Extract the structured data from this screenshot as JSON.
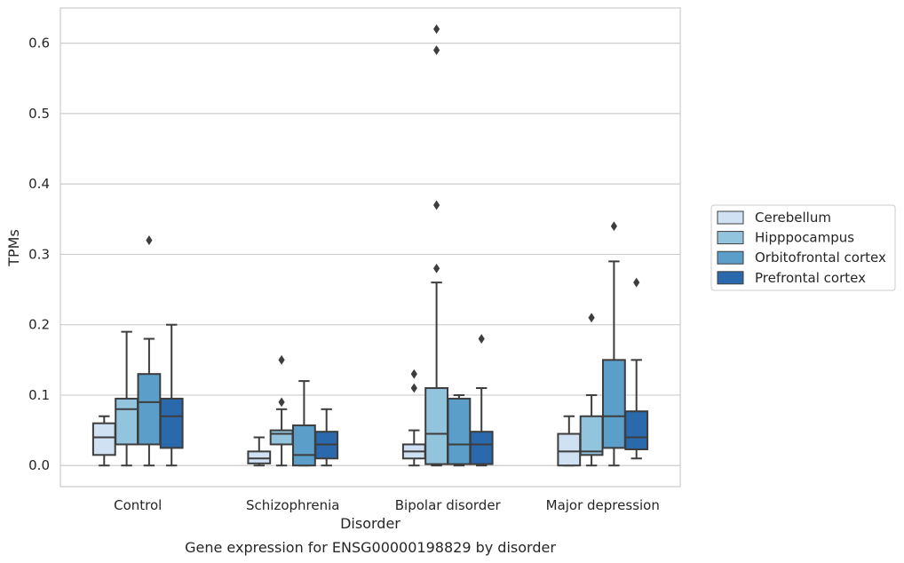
{
  "caption": "Gene expression for ENSG00000198829 by disorder",
  "chart_data": {
    "type": "box",
    "title": "",
    "xlabel": "Disorder",
    "ylabel": "TPMs",
    "ylim": [
      -0.03,
      0.65
    ],
    "yticks": [
      0.0,
      0.1,
      0.2,
      0.3,
      0.4,
      0.5,
      0.6
    ],
    "ytick_labels": [
      "0.0",
      "0.1",
      "0.2",
      "0.3",
      "0.4",
      "0.5",
      "0.6"
    ],
    "grid": "horizontal",
    "legend_position": "right",
    "categories": [
      "Control",
      "Schizophrenia",
      "Bipolar disorder",
      "Major depression"
    ],
    "series": [
      {
        "name": "Cerebellum",
        "color": "#cfe1f2",
        "boxes": [
          {
            "whislo": 0.0,
            "q1": 0.015,
            "med": 0.04,
            "q3": 0.06,
            "whishi": 0.07,
            "fliers": []
          },
          {
            "whislo": 0.0,
            "q1": 0.003,
            "med": 0.01,
            "q3": 0.02,
            "whishi": 0.04,
            "fliers": []
          },
          {
            "whislo": 0.0,
            "q1": 0.01,
            "med": 0.02,
            "q3": 0.03,
            "whishi": 0.05,
            "fliers": [
              0.11,
              0.13
            ]
          },
          {
            "whislo": 0.0,
            "q1": 0.0,
            "med": 0.02,
            "q3": 0.045,
            "whishi": 0.07,
            "fliers": []
          }
        ]
      },
      {
        "name": "Hipppocampus",
        "color": "#93c4de",
        "boxes": [
          {
            "whislo": 0.0,
            "q1": 0.03,
            "med": 0.08,
            "q3": 0.095,
            "whishi": 0.19,
            "fliers": []
          },
          {
            "whislo": 0.0,
            "q1": 0.03,
            "med": 0.045,
            "q3": 0.05,
            "whishi": 0.08,
            "fliers": [
              0.09,
              0.15
            ]
          },
          {
            "whislo": 0.0,
            "q1": 0.002,
            "med": 0.045,
            "q3": 0.11,
            "whishi": 0.26,
            "fliers": [
              0.28,
              0.37,
              0.59,
              0.62
            ]
          },
          {
            "whislo": 0.0,
            "q1": 0.015,
            "med": 0.02,
            "q3": 0.07,
            "whishi": 0.1,
            "fliers": [
              0.21
            ]
          }
        ]
      },
      {
        "name": "Orbitofrontal cortex",
        "color": "#5a9ec9",
        "boxes": [
          {
            "whislo": 0.0,
            "q1": 0.03,
            "med": 0.09,
            "q3": 0.13,
            "whishi": 0.18,
            "fliers": [
              0.32
            ]
          },
          {
            "whislo": 0.0,
            "q1": 0.0,
            "med": 0.015,
            "q3": 0.057,
            "whishi": 0.12,
            "fliers": []
          },
          {
            "whislo": 0.0,
            "q1": 0.002,
            "med": 0.03,
            "q3": 0.095,
            "whishi": 0.1,
            "fliers": []
          },
          {
            "whislo": 0.0,
            "q1": 0.025,
            "med": 0.07,
            "q3": 0.15,
            "whishi": 0.29,
            "fliers": [
              0.34
            ]
          }
        ]
      },
      {
        "name": "Prefrontal cortex",
        "color": "#2a69ac",
        "boxes": [
          {
            "whislo": 0.0,
            "q1": 0.025,
            "med": 0.07,
            "q3": 0.095,
            "whishi": 0.2,
            "fliers": []
          },
          {
            "whislo": 0.0,
            "q1": 0.01,
            "med": 0.03,
            "q3": 0.048,
            "whishi": 0.08,
            "fliers": []
          },
          {
            "whislo": 0.0,
            "q1": 0.002,
            "med": 0.03,
            "q3": 0.048,
            "whishi": 0.11,
            "fliers": [
              0.18
            ]
          },
          {
            "whislo": 0.01,
            "q1": 0.023,
            "med": 0.04,
            "q3": 0.077,
            "whishi": 0.15,
            "fliers": [
              0.26
            ]
          }
        ]
      }
    ]
  }
}
